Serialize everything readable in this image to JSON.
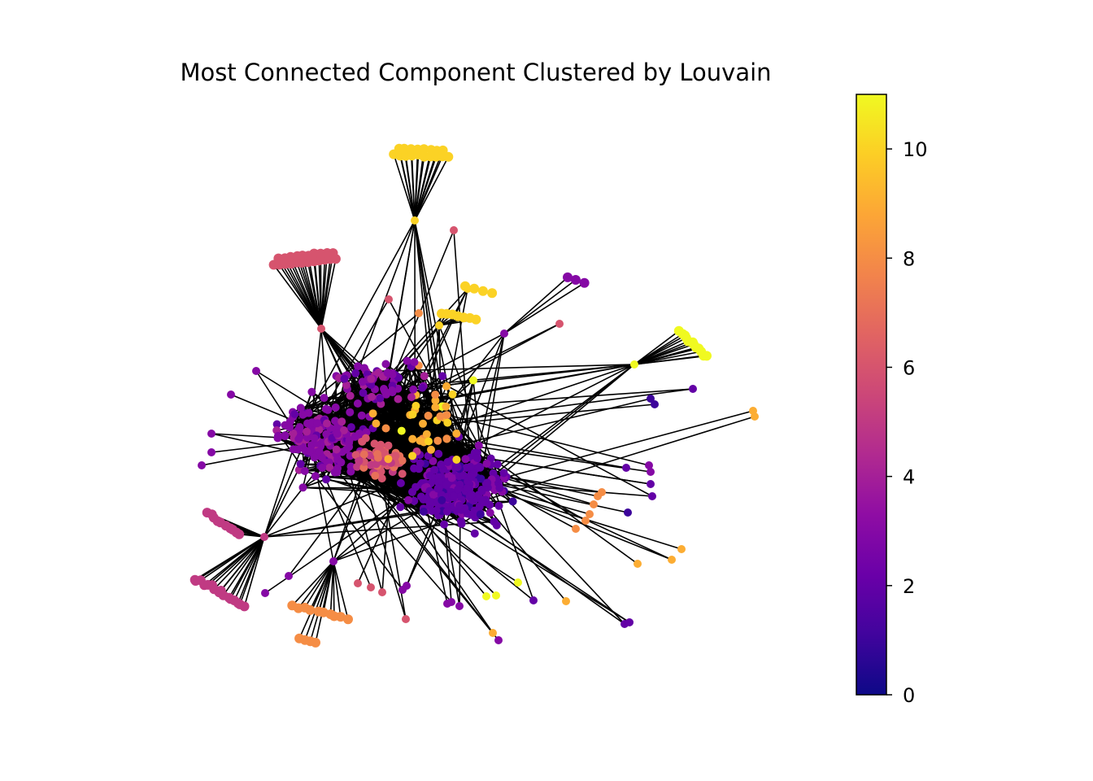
{
  "chart_data": {
    "type": "network",
    "title": "Most Connected Component Clustered by Louvain",
    "colormap": "plasma",
    "node_attribute": "community",
    "colorbar": {
      "min": 0,
      "max": 11,
      "ticks": [
        0,
        2,
        4,
        6,
        8,
        10
      ],
      "tick_labels": [
        "0",
        "2",
        "4",
        "6",
        "8",
        "10"
      ],
      "placement": "right"
    },
    "edge_color": "#000000",
    "node_groups": [
      {
        "community": 10,
        "layout": "dense fan cluster at top",
        "approx_nodes": 20
      },
      {
        "community": 6,
        "layout": "fan cluster upper left",
        "approx_nodes": 25
      },
      {
        "community": 11,
        "layout": "fan cluster right",
        "approx_nodes": 14
      },
      {
        "community": 5,
        "layout": "fan cluster lower left",
        "approx_nodes": 28
      },
      {
        "community": 9,
        "layout": "small clusters bottom and right edge",
        "approx_nodes": 20
      },
      {
        "community": 2,
        "layout": "dense core, right half",
        "approx_nodes": 300
      },
      {
        "community": 3,
        "layout": "dense core, left half",
        "approx_nodes": 220
      },
      {
        "community": 6,
        "layout": "core center-left",
        "approx_nodes": 60
      },
      {
        "community": 1,
        "layout": "scattered, right periphery",
        "approx_nodes": 20
      }
    ],
    "grid": false,
    "axes_visible": false
  }
}
